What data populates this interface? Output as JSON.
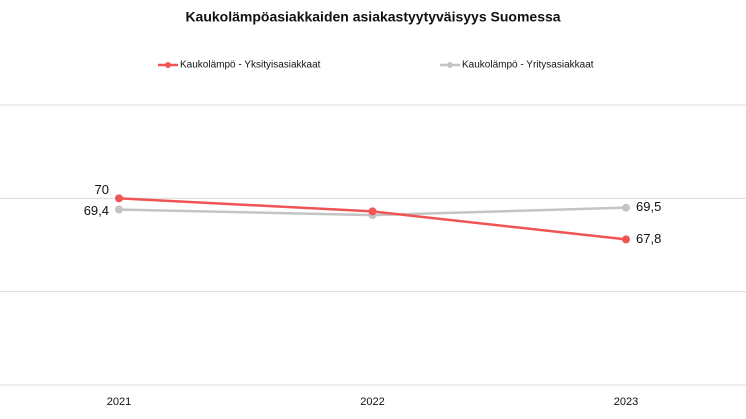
{
  "chart_data": {
    "type": "line",
    "title": "Kaukolämpöasiakkaiden asiakastyytyväisyys Suomessa",
    "categories": [
      "2021",
      "2022",
      "2023"
    ],
    "series": [
      {
        "name": "Kaukolämpö - Yksityisasiakkaat",
        "color": "#f05454",
        "values": [
          70,
          69.3,
          67.8
        ],
        "value_labels": [
          "70",
          null,
          "67,8"
        ]
      },
      {
        "name": "Kaukolämpö - Yritysasiakkaat",
        "color": "#c4c4c4",
        "values": [
          69.4,
          69.1,
          69.5
        ],
        "value_labels": [
          "69,4",
          null,
          "69,5"
        ]
      }
    ],
    "ylim": [
      60,
      75
    ],
    "yticks": [
      60,
      65,
      70,
      75
    ],
    "grid": true
  }
}
